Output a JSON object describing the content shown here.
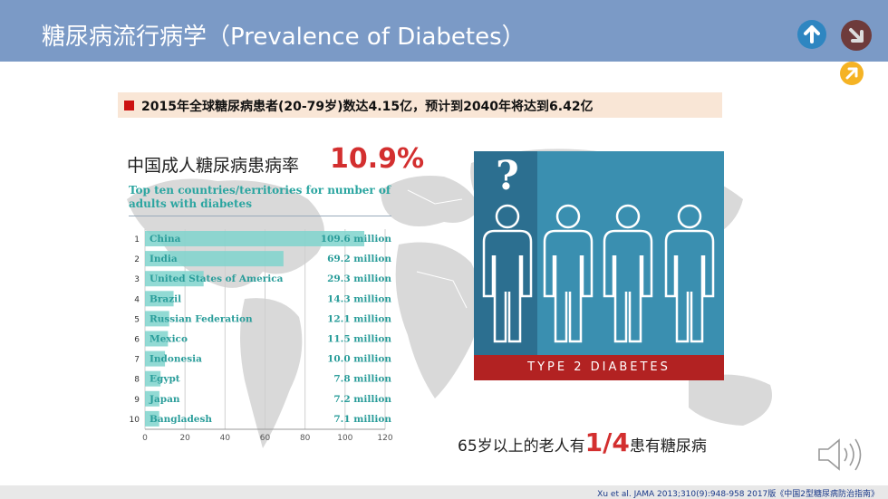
{
  "header": {
    "title": "糖尿病流行病学（Prevalence of Diabetes）"
  },
  "nav": {
    "up_icon": "arrow-up-icon",
    "down_icon": "arrow-down-icon",
    "next_icon": "arrow-up-right-icon"
  },
  "banner": {
    "text": "2015年全球糖尿病患者(20-79岁)数达4.15亿，预计到2040年将达到6.42亿"
  },
  "prevalence": {
    "label": "中国成人糖尿病患病率",
    "value": "10.9%"
  },
  "chart_data": {
    "type": "bar",
    "orientation": "horizontal",
    "title": "Top ten countries/territories for number of adults with diabetes",
    "ranks": [
      "1",
      "2",
      "3",
      "4",
      "5",
      "6",
      "7",
      "8",
      "9",
      "10"
    ],
    "categories": [
      "China",
      "India",
      "United States of America",
      "Brazil",
      "Russian Federation",
      "Mexico",
      "Indonesia",
      "Egypt",
      "Japan",
      "Bangladesh"
    ],
    "values": [
      109.6,
      69.2,
      29.3,
      14.3,
      12.1,
      11.5,
      10.0,
      7.8,
      7.2,
      7.1
    ],
    "value_labels": [
      "109.6 million",
      "69.2 million",
      "29.3 million",
      "14.3 million",
      "12.1 million",
      "11.5 million",
      "10.0 million",
      "7.8 million",
      "7.2 million",
      "7.1 million"
    ],
    "xticks": [
      0,
      20,
      40,
      60,
      80,
      100,
      120
    ],
    "xlim": [
      0,
      120
    ],
    "grid": true,
    "bar_color": "#7fd3cc"
  },
  "photo": {
    "question_mark": "?",
    "band_text": "TYPE 2 DIABETES"
  },
  "elderly": {
    "prefix": "65岁以上的老人有",
    "fraction": "1/4",
    "suffix": "患有糖尿病"
  },
  "footer": {
    "citation": "Xu et al. JAMA 2013;310(9):948-958   2017版《中国2型糖尿病防治指南》"
  },
  "speaker_icon": "speaker-icon"
}
